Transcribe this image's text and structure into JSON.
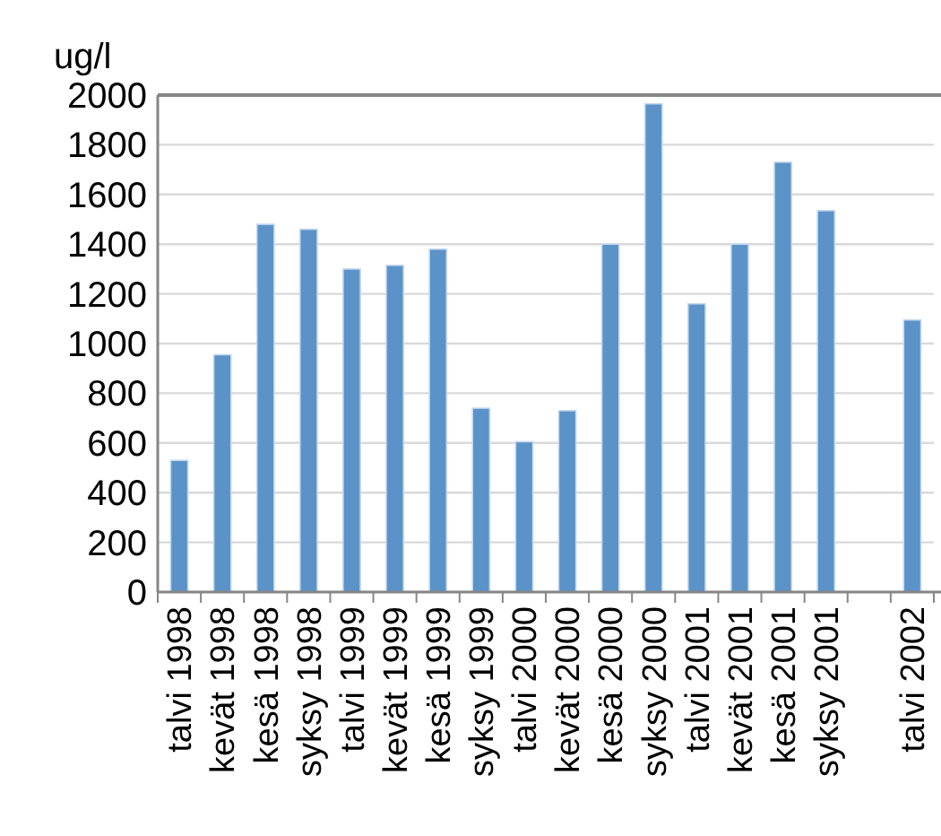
{
  "chart_data": {
    "type": "bar",
    "ylabel": "ug/l",
    "categories": [
      "talvi 1998",
      "kevät 1998",
      "kesä 1998",
      "syksy 1998",
      "talvi 1999",
      "kevät 1999",
      "kesä 1999",
      "syksy 1999",
      "talvi 2000",
      "kevät 2000",
      "kesä 2000",
      "syksy 2000",
      "talvi 2001",
      "kevät 2001",
      "kesä 2001",
      "syksy 2001",
      null,
      "talvi 2002"
    ],
    "values": [
      530,
      955,
      1480,
      1460,
      1300,
      1315,
      1380,
      740,
      605,
      730,
      1400,
      1965,
      1160,
      1400,
      1730,
      1535,
      null,
      1095
    ],
    "color": "#5b93c8",
    "ylim": [
      0,
      2000
    ],
    "yticks": [
      0,
      200,
      400,
      600,
      800,
      1000,
      1200,
      1400,
      1600,
      1800,
      2000
    ],
    "grid": "y"
  }
}
